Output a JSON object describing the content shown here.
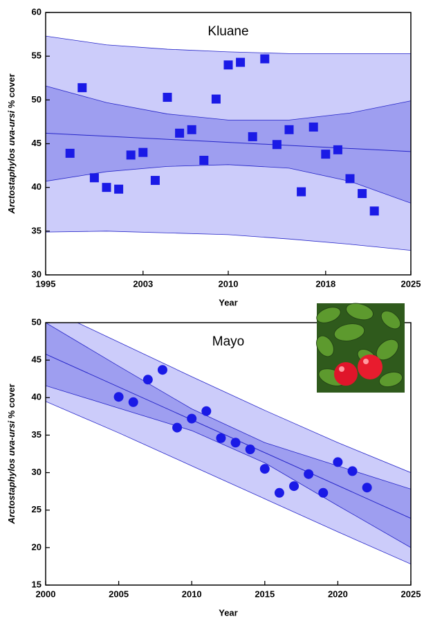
{
  "chart_data": [
    {
      "type": "scatter",
      "title": "Kluane",
      "xlabel": "Year",
      "ylabel": [
        "Arctostaphylos uva-ursi",
        "% cover"
      ],
      "xlim": [
        1995,
        2025
      ],
      "ylim": [
        30,
        60
      ],
      "xticks": [
        1995,
        2003,
        2010,
        2018,
        2025
      ],
      "yticks": [
        30,
        35,
        40,
        45,
        50,
        55,
        60
      ],
      "marker": "square",
      "color": "#1a1ae6",
      "x": [
        1997,
        1998,
        1999,
        2000,
        2001,
        2002,
        2003,
        2004,
        2005,
        2006,
        2007,
        2008,
        2009,
        2010,
        2011,
        2012,
        2013,
        2014,
        2015,
        2016,
        2017,
        2018,
        2019,
        2020,
        2021,
        2022
      ],
      "values": [
        43.9,
        51.4,
        41.1,
        40.0,
        39.8,
        43.7,
        44.0,
        40.8,
        50.3,
        46.2,
        46.6,
        43.1,
        50.1,
        54.0,
        54.3,
        45.8,
        54.7,
        44.9,
        46.6,
        39.5,
        46.9,
        43.8,
        44.3,
        41.0,
        39.3,
        37.3
      ],
      "fit": {
        "x": [
          1995,
          2025
        ],
        "values": [
          46.2,
          44.1
        ],
        "color": "#2424c8"
      },
      "prediction_band": {
        "x": [
          1995,
          2000,
          2005,
          2010,
          2015,
          2020,
          2025
        ],
        "upper": [
          57.3,
          56.3,
          55.8,
          55.5,
          55.3,
          55.3,
          55.3
        ],
        "lower": [
          34.9,
          35.0,
          34.8,
          34.6,
          34.1,
          33.5,
          32.8
        ],
        "color": "#ccccfa"
      },
      "confidence_band": {
        "x": [
          1995,
          2000,
          2005,
          2010,
          2015,
          2020,
          2025
        ],
        "upper": [
          51.6,
          49.7,
          48.4,
          47.7,
          47.7,
          48.5,
          49.9
        ],
        "lower": [
          40.7,
          41.8,
          42.4,
          42.6,
          42.2,
          40.7,
          38.2
        ],
        "color": "#9e9ef0"
      }
    },
    {
      "type": "scatter",
      "title": "Mayo",
      "xlabel": "Year",
      "ylabel": [
        "Arctostaphylos uva-ursi",
        "% cover"
      ],
      "xlim": [
        2000,
        2025
      ],
      "ylim": [
        15,
        50
      ],
      "xticks": [
        2000,
        2005,
        2010,
        2015,
        2020,
        2025
      ],
      "yticks": [
        15,
        20,
        25,
        30,
        35,
        40,
        45,
        50
      ],
      "marker": "circle",
      "color": "#1a1ae6",
      "x": [
        2005,
        2006,
        2007,
        2008,
        2009,
        2010,
        2011,
        2012,
        2013,
        2014,
        2015,
        2016,
        2017,
        2018,
        2019,
        2020,
        2021,
        2022
      ],
      "values": [
        40.1,
        39.4,
        42.4,
        43.7,
        36.0,
        37.2,
        38.2,
        34.6,
        34.0,
        33.1,
        30.5,
        27.3,
        28.2,
        29.8,
        27.3,
        31.4,
        30.2,
        28.0
      ],
      "fit": {
        "x": [
          2000,
          2025
        ],
        "values": [
          45.8,
          23.9
        ],
        "color": "#2424c8"
      },
      "prediction_band": {
        "x": [
          2000,
          2005,
          2010,
          2015,
          2020,
          2025
        ],
        "upper": [
          52.0,
          47.4,
          42.8,
          38.3,
          34.0,
          30.0
        ],
        "lower": [
          39.5,
          35.3,
          30.9,
          26.5,
          22.1,
          17.8
        ],
        "color": "#ccccfa"
      },
      "confidence_band": {
        "x": [
          2000,
          2005,
          2010,
          2015,
          2020,
          2025
        ],
        "upper": [
          50.0,
          44.2,
          38.5,
          34.0,
          30.9,
          27.8
        ],
        "lower": [
          41.6,
          38.6,
          35.6,
          31.3,
          25.6,
          20.0
        ],
        "color": "#9e9ef0"
      }
    }
  ]
}
